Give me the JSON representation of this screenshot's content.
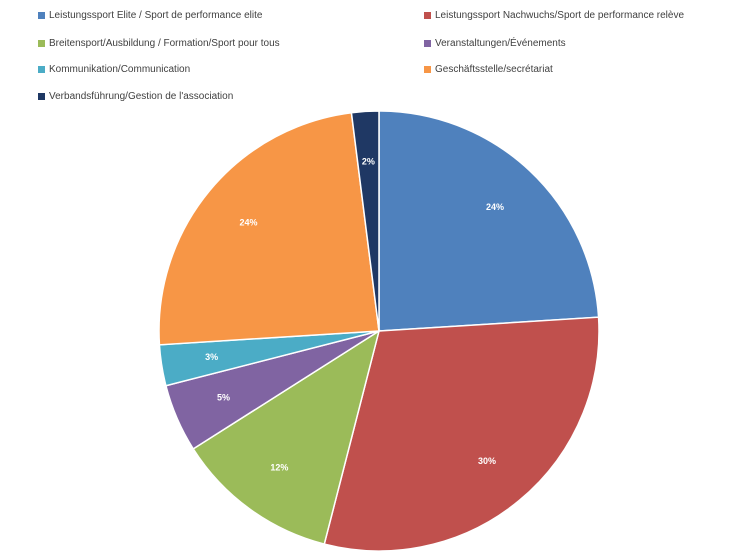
{
  "chart_data": {
    "type": "pie",
    "title": "",
    "legend_position": "top",
    "slices": [
      {
        "label": "Leistungssport Elite / Sport de performance elite",
        "value": 24,
        "value_label": "24%",
        "color": "#4f81bd"
      },
      {
        "label": "Leistungssport Nachwuchs/Sport de performance relève",
        "value": 30,
        "value_label": "30%",
        "color": "#c0504d"
      },
      {
        "label": "Breitensport/Ausbildung / Formation/Sport pour tous",
        "value": 12,
        "value_label": "12%",
        "color": "#9bbb59"
      },
      {
        "label": "Veranstaltungen/Événements",
        "value": 5,
        "value_label": "5%",
        "color": "#8064a2"
      },
      {
        "label": "Kommunikation/Communication",
        "value": 3,
        "value_label": "3%",
        "color": "#4bacc6"
      },
      {
        "label": "Geschäftsstelle/secrétariat",
        "value": 24,
        "value_label": "24%",
        "color": "#f79646"
      },
      {
        "label": "Verbandsführung/Gestion de l'association",
        "value": 2,
        "value_label": "2%",
        "color": "#1f3864"
      }
    ]
  }
}
